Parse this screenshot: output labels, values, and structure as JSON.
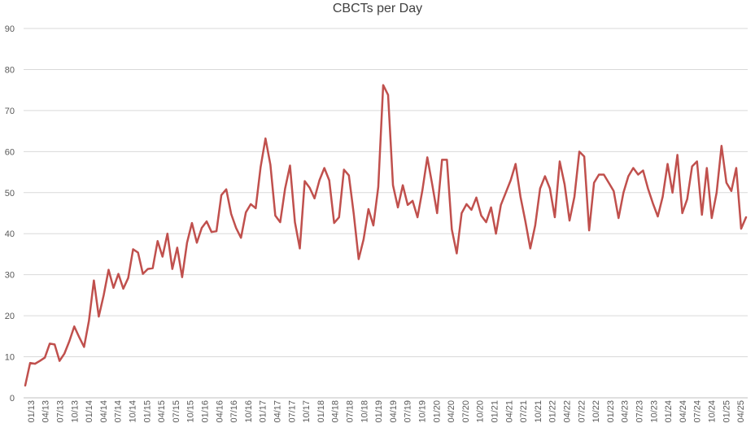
{
  "chart_data": {
    "type": "line",
    "title": "CBCTs per Day",
    "xlabel": "",
    "ylabel": "",
    "ylim": [
      0,
      90
    ],
    "y_ticks": [
      0,
      10,
      20,
      30,
      40,
      50,
      60,
      70,
      80,
      90
    ],
    "grid": "horizontal",
    "line_color": "#C0504D",
    "grid_color": "#D9D9D9",
    "x_tick_labels": [
      "01/13",
      "04/13",
      "07/13",
      "10/13",
      "01/14",
      "04/14",
      "07/14",
      "10/14",
      "01/15",
      "04/15",
      "07/15",
      "10/15",
      "01/16",
      "04/16",
      "07/16",
      "10/16",
      "01/17",
      "04/17",
      "07/17",
      "10/17",
      "01/18",
      "04/18",
      "07/18",
      "10/18",
      "01/19",
      "04/19",
      "07/19",
      "10/19",
      "01/20",
      "04/20",
      "07/20",
      "10/20",
      "01/21",
      "04/21",
      "07/21",
      "10/21",
      "01/22",
      "04/22",
      "07/22",
      "10/22",
      "01/23",
      "04/23",
      "07/23",
      "10/23",
      "01/24",
      "04/24",
      "07/24",
      "10/24",
      "01/25",
      "04/25"
    ],
    "series": [
      {
        "values": [
          3,
          8.5,
          8.3,
          9,
          9.8,
          13.2,
          13,
          9,
          10.8,
          13.8,
          17.4,
          14.8,
          12.4,
          18.8,
          28.6,
          19.8,
          25,
          31.2,
          26.8,
          30.2,
          26.6,
          29.2,
          36.2,
          35.4,
          30.2,
          31.4,
          31.6,
          38.2,
          34.4,
          40,
          31.4,
          36.6,
          29.4,
          37.8,
          42.6,
          37.8,
          41.4,
          43,
          40.4,
          40.6,
          49.4,
          50.8,
          44.8,
          41.4,
          39,
          45.2,
          47.2,
          46.2,
          56.2,
          63.2,
          56.8,
          44.4,
          42.8,
          51,
          56.6,
          42.8,
          36.4,
          52.8,
          51.2,
          48.6,
          53,
          56,
          53,
          42.6,
          44,
          55.6,
          54.2,
          44.8,
          33.8,
          38.6,
          46,
          42,
          51.4,
          76.2,
          73.8,
          51.8,
          46.4,
          51.8,
          47,
          48,
          44,
          50.6,
          58.6,
          52,
          45,
          58,
          58,
          41,
          35.2,
          45,
          47.2,
          45.8,
          48.8,
          44.4,
          42.8,
          46.4,
          40,
          47,
          50,
          53,
          57,
          49,
          43,
          36.4,
          42,
          51,
          54,
          51,
          44,
          57.6,
          52,
          43.2,
          49,
          60,
          58.8,
          40.8,
          52.4,
          54.4,
          54.4,
          52.4,
          50.4,
          43.8,
          50,
          54,
          56,
          54.4,
          55.4,
          51,
          47.4,
          44.2,
          49,
          57,
          50,
          59.2,
          45,
          48.4,
          56.4,
          57.6,
          44.6,
          56,
          43.8,
          50,
          61.4,
          52.4,
          50.4,
          56,
          41.2,
          44
        ]
      }
    ]
  }
}
